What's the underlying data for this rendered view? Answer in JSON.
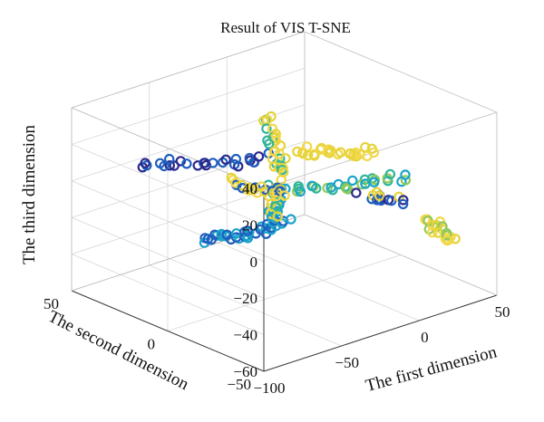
{
  "chart_data": {
    "type": "scatter",
    "title": "Result of VIS T-SNE",
    "xlabel": "The first dimension",
    "ylabel": "The second dimension",
    "zlabel": "The third dimension",
    "xlim": [
      -100,
      50
    ],
    "ylim": [
      -50,
      50
    ],
    "zlim": [
      -60,
      40
    ],
    "x_ticks": [
      -100,
      -50,
      0,
      50
    ],
    "y_ticks": [
      -50,
      0,
      50
    ],
    "z_ticks": [
      -60,
      -40,
      -20,
      0,
      20,
      40
    ],
    "x_tick_labels": [
      "−100",
      "−50",
      "0",
      "50"
    ],
    "y_tick_labels": [
      "−50",
      "0",
      "50"
    ],
    "z_tick_labels": [
      "−60",
      "−40",
      "−20",
      "0",
      "20",
      "40"
    ],
    "grid": true,
    "colormap": [
      "#2b2a8c",
      "#1f5fbf",
      "#1aa3c9",
      "#2fb59a",
      "#8fc95a",
      "#e6d33a",
      "#f2d84a"
    ],
    "clusters": [
      {
        "from": [
          -60,
          45,
          0
        ],
        "to": [
          -10,
          20,
          0
        ],
        "n": 26,
        "colors": [
          0,
          1
        ]
      },
      {
        "from": [
          -95,
          -15,
          -5
        ],
        "to": [
          -35,
          -10,
          -15
        ],
        "n": 34,
        "colors": [
          1,
          2
        ]
      },
      {
        "from": [
          -30,
          5,
          35
        ],
        "to": [
          -20,
          5,
          0
        ],
        "n": 28,
        "colors": [
          5,
          3,
          6
        ]
      },
      {
        "from": [
          -30,
          0,
          0
        ],
        "to": [
          -25,
          5,
          -20
        ],
        "n": 30,
        "colors": [
          2,
          3,
          5
        ]
      },
      {
        "from": [
          -10,
          5,
          12
        ],
        "to": [
          20,
          -10,
          8
        ],
        "n": 26,
        "colors": [
          5,
          6
        ]
      },
      {
        "from": [
          -20,
          0,
          -5
        ],
        "to": [
          15,
          -30,
          5
        ],
        "n": 28,
        "colors": [
          2,
          3,
          4
        ]
      },
      {
        "from": [
          -35,
          20,
          -5
        ],
        "to": [
          -10,
          10,
          -15
        ],
        "n": 22,
        "colors": [
          6,
          5,
          1
        ]
      },
      {
        "from": [
          0,
          -20,
          -5
        ],
        "to": [
          20,
          -25,
          -10
        ],
        "n": 14,
        "colors": [
          0,
          1,
          5
        ]
      },
      {
        "from": [
          35,
          -25,
          -25
        ],
        "to": [
          45,
          -30,
          -38
        ],
        "n": 20,
        "colors": [
          5,
          6,
          4
        ]
      }
    ]
  }
}
